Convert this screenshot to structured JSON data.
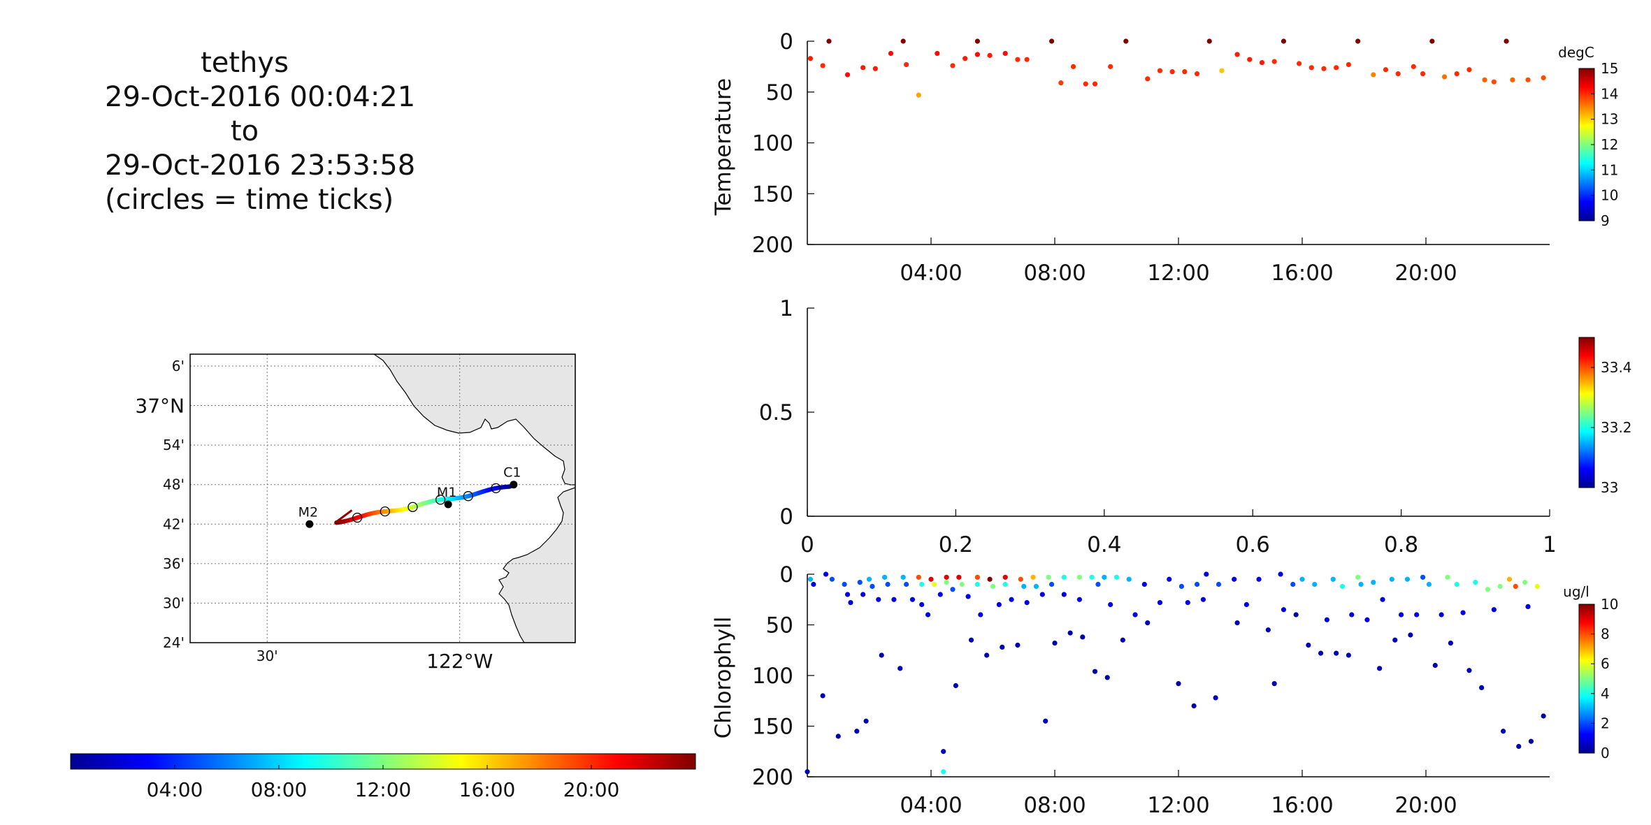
{
  "title": {
    "line1": "tethys",
    "line2": "29-Oct-2016 00:04:21",
    "line3": "to",
    "line4": "29-Oct-2016 23:53:58",
    "line5": "(circles = time ticks)"
  },
  "chart_data": [
    {
      "type": "map",
      "lat_labels": [
        "6'",
        "37°N",
        "54'",
        "48'",
        "42'",
        "36'",
        "30'",
        "24'"
      ],
      "lat_values": [
        37.1,
        37.0,
        36.9,
        36.8,
        36.7,
        36.6,
        36.5,
        36.4
      ],
      "lon_labels": [
        "30'",
        "122°W"
      ],
      "lon_values": [
        -122.5,
        -122.0
      ],
      "xlim": [
        -122.7,
        -121.7
      ],
      "ylim": [
        36.4,
        37.13
      ],
      "grid": true,
      "stations": [
        {
          "label": "C1",
          "lon": -121.86,
          "lat": 36.8
        },
        {
          "label": "M1",
          "lon": -122.03,
          "lat": 36.75
        },
        {
          "label": "M2",
          "lon": -122.39,
          "lat": 36.7
        }
      ],
      "colormap": "jet",
      "track_time_hours": [
        0,
        24
      ]
    },
    {
      "type": "colorbar",
      "orientation": "horizontal",
      "colormap": "jet",
      "range_hours": [
        0,
        24
      ],
      "tick_hours": [
        4,
        8,
        12,
        16,
        20
      ],
      "tick_labels": [
        "04:00",
        "08:00",
        "12:00",
        "16:00",
        "20:00"
      ]
    },
    {
      "type": "scatter",
      "ylabel": "Temperature",
      "xlim_hours": [
        0,
        24
      ],
      "ylim": [
        200,
        0
      ],
      "yticks": [
        0,
        50,
        100,
        150,
        200
      ],
      "xtick_hours": [
        4,
        8,
        12,
        16,
        20
      ],
      "xtick_labels": [
        "04:00",
        "08:00",
        "12:00",
        "16:00",
        "20:00"
      ],
      "colorbar": {
        "label": "degC",
        "min": 9,
        "max": 15,
        "ticks": [
          9,
          10,
          11,
          12,
          13,
          14,
          15
        ]
      },
      "points": [
        [
          0.1,
          17,
          14.1
        ],
        [
          0.5,
          24,
          14.0
        ],
        [
          0.7,
          0,
          15.0
        ],
        [
          1.3,
          33,
          14.2
        ],
        [
          1.8,
          26,
          14.1
        ],
        [
          2.2,
          27,
          14.1
        ],
        [
          2.7,
          12,
          14.2
        ],
        [
          3.1,
          0,
          15.0
        ],
        [
          3.2,
          23,
          14.0
        ],
        [
          3.6,
          53,
          13.3
        ],
        [
          4.2,
          12,
          14.2
        ],
        [
          4.7,
          24,
          14.0
        ],
        [
          5.1,
          17,
          14.1
        ],
        [
          5.5,
          0,
          15.0
        ],
        [
          5.5,
          13,
          14.2
        ],
        [
          5.9,
          14,
          14.1
        ],
        [
          6.4,
          12,
          14.2
        ],
        [
          6.8,
          18,
          14.0
        ],
        [
          7.1,
          18,
          14.0
        ],
        [
          7.9,
          0,
          15.0
        ],
        [
          8.2,
          41,
          13.9
        ],
        [
          8.6,
          25,
          14.0
        ],
        [
          9.0,
          42,
          14.0
        ],
        [
          9.3,
          42,
          14.0
        ],
        [
          9.8,
          25,
          14.0
        ],
        [
          10.3,
          0,
          15.0
        ],
        [
          11.0,
          37,
          14.0
        ],
        [
          11.4,
          29,
          14.0
        ],
        [
          11.8,
          30,
          14.0
        ],
        [
          12.2,
          30,
          14.0
        ],
        [
          12.6,
          32,
          14.0
        ],
        [
          13.0,
          0,
          15.0
        ],
        [
          13.4,
          29,
          13.1
        ],
        [
          13.9,
          13,
          14.1
        ],
        [
          14.3,
          18,
          14.1
        ],
        [
          14.7,
          21,
          14.1
        ],
        [
          15.1,
          20,
          14.0
        ],
        [
          15.4,
          0,
          15.0
        ],
        [
          15.9,
          22,
          14.0
        ],
        [
          16.3,
          26,
          14.0
        ],
        [
          16.7,
          27,
          14.0
        ],
        [
          17.1,
          26,
          14.0
        ],
        [
          17.5,
          23,
          14.0
        ],
        [
          17.8,
          0,
          15.0
        ],
        [
          18.3,
          33,
          13.5
        ],
        [
          18.7,
          28,
          14.0
        ],
        [
          19.1,
          32,
          14.0
        ],
        [
          19.6,
          25,
          14.0
        ],
        [
          19.9,
          32,
          14.0
        ],
        [
          20.2,
          0,
          15.0
        ],
        [
          20.6,
          35,
          13.6
        ],
        [
          21.0,
          32,
          14.0
        ],
        [
          21.4,
          28,
          14.0
        ],
        [
          21.9,
          38,
          13.7
        ],
        [
          22.2,
          40,
          13.8
        ],
        [
          22.6,
          0,
          15.0
        ],
        [
          22.8,
          38,
          13.7
        ],
        [
          23.3,
          38,
          13.8
        ],
        [
          23.8,
          36,
          13.8
        ]
      ]
    },
    {
      "type": "scatter",
      "ylabel": "",
      "xlim": [
        0,
        1
      ],
      "ylim": [
        0,
        1
      ],
      "yticks": [
        0,
        0.5,
        1
      ],
      "xticks": [
        0,
        0.2,
        0.4,
        0.6,
        0.8,
        1
      ],
      "colorbar": {
        "label": "",
        "min": 33,
        "max": 33.5,
        "ticks": [
          33,
          33.2,
          33.4
        ]
      },
      "points": []
    },
    {
      "type": "scatter",
      "ylabel": "Chlorophyll",
      "xlim_hours": [
        0,
        24
      ],
      "ylim": [
        200,
        0
      ],
      "yticks": [
        0,
        50,
        100,
        150,
        200
      ],
      "xtick_hours": [
        4,
        8,
        12,
        16,
        20
      ],
      "xtick_labels": [
        "04:00",
        "08:00",
        "12:00",
        "16:00",
        "20:00"
      ],
      "colorbar": {
        "label": "ug/l",
        "min": 0,
        "max": 10,
        "ticks": [
          0,
          2,
          4,
          6,
          8,
          10
        ]
      },
      "points": [
        [
          0.0,
          195,
          0.5
        ],
        [
          0.1,
          5,
          3
        ],
        [
          0.2,
          10,
          1
        ],
        [
          0.5,
          120,
          0.5
        ],
        [
          0.6,
          0,
          1
        ],
        [
          0.8,
          5,
          2
        ],
        [
          1.0,
          160,
          0.5
        ],
        [
          1.2,
          10,
          2
        ],
        [
          1.3,
          20,
          1
        ],
        [
          1.4,
          28,
          1
        ],
        [
          1.6,
          155,
          0.5
        ],
        [
          1.7,
          8,
          2
        ],
        [
          1.8,
          20,
          1
        ],
        [
          1.9,
          145,
          0.5
        ],
        [
          2.0,
          5,
          3
        ],
        [
          2.1,
          12,
          2
        ],
        [
          2.3,
          25,
          1
        ],
        [
          2.4,
          80,
          0.5
        ],
        [
          2.5,
          3,
          3
        ],
        [
          2.6,
          10,
          2
        ],
        [
          2.8,
          25,
          1
        ],
        [
          3.0,
          93,
          0.5
        ],
        [
          3.1,
          3,
          3
        ],
        [
          3.2,
          10,
          2
        ],
        [
          3.4,
          25,
          1
        ],
        [
          3.6,
          3,
          8
        ],
        [
          3.7,
          10,
          4
        ],
        [
          3.7,
          30,
          1
        ],
        [
          3.9,
          40,
          1
        ],
        [
          4.0,
          5,
          9
        ],
        [
          4.1,
          10,
          6
        ],
        [
          4.3,
          20,
          1
        ],
        [
          4.4,
          175,
          0.5
        ],
        [
          4.4,
          195,
          4
        ],
        [
          4.5,
          3,
          9
        ],
        [
          4.5,
          8,
          5
        ],
        [
          4.7,
          15,
          2
        ],
        [
          4.8,
          110,
          0.5
        ],
        [
          4.9,
          3,
          9
        ],
        [
          5.0,
          10,
          5
        ],
        [
          5.2,
          22,
          1
        ],
        [
          5.3,
          65,
          0.5
        ],
        [
          5.5,
          3,
          8
        ],
        [
          5.5,
          10,
          4
        ],
        [
          5.6,
          40,
          1
        ],
        [
          5.8,
          80,
          0.5
        ],
        [
          5.9,
          5,
          10
        ],
        [
          6.0,
          12,
          5
        ],
        [
          6.2,
          30,
          1
        ],
        [
          6.3,
          72,
          0.5
        ],
        [
          6.4,
          3,
          9
        ],
        [
          6.4,
          10,
          4
        ],
        [
          6.6,
          25,
          1
        ],
        [
          6.8,
          70,
          0.5
        ],
        [
          6.9,
          5,
          8
        ],
        [
          7.0,
          12,
          3
        ],
        [
          7.1,
          28,
          1
        ],
        [
          7.3,
          3,
          7
        ],
        [
          7.4,
          12,
          3
        ],
        [
          7.6,
          20,
          1
        ],
        [
          7.7,
          145,
          0.5
        ],
        [
          7.8,
          3,
          5
        ],
        [
          7.9,
          10,
          2
        ],
        [
          8.0,
          68,
          0.5
        ],
        [
          8.3,
          3,
          4
        ],
        [
          8.3,
          20,
          1
        ],
        [
          8.5,
          58,
          0.5
        ],
        [
          8.8,
          3,
          5
        ],
        [
          8.8,
          25,
          1
        ],
        [
          8.9,
          62,
          0.5
        ],
        [
          9.2,
          3,
          4
        ],
        [
          9.3,
          96,
          0.5
        ],
        [
          9.4,
          10,
          2
        ],
        [
          9.6,
          3,
          3
        ],
        [
          9.7,
          102,
          0.5
        ],
        [
          9.8,
          30,
          1
        ],
        [
          10.0,
          3,
          4
        ],
        [
          10.2,
          65,
          0.5
        ],
        [
          10.4,
          5,
          3
        ],
        [
          10.6,
          40,
          1
        ],
        [
          10.9,
          10,
          1
        ],
        [
          11.0,
          48,
          0.5
        ],
        [
          11.4,
          28,
          1
        ],
        [
          11.7,
          5,
          1
        ],
        [
          12.0,
          108,
          0.5
        ],
        [
          12.1,
          12,
          2
        ],
        [
          12.3,
          28,
          1
        ],
        [
          12.5,
          130,
          0.5
        ],
        [
          12.6,
          10,
          2
        ],
        [
          12.8,
          25,
          1
        ],
        [
          12.9,
          0,
          1
        ],
        [
          13.2,
          122,
          0.5
        ],
        [
          13.3,
          10,
          2
        ],
        [
          13.8,
          5,
          1
        ],
        [
          13.9,
          48,
          0.5
        ],
        [
          14.2,
          30,
          1
        ],
        [
          14.6,
          5,
          1
        ],
        [
          14.9,
          55,
          0.5
        ],
        [
          15.1,
          108,
          0.5
        ],
        [
          15.3,
          0,
          1
        ],
        [
          15.4,
          35,
          1
        ],
        [
          15.7,
          10,
          2
        ],
        [
          15.8,
          40,
          0.5
        ],
        [
          16.0,
          5,
          3
        ],
        [
          16.2,
          70,
          0.5
        ],
        [
          16.4,
          10,
          3
        ],
        [
          16.6,
          78,
          0.5
        ],
        [
          16.8,
          45,
          1
        ],
        [
          17.0,
          5,
          3
        ],
        [
          17.1,
          78,
          0.5
        ],
        [
          17.3,
          12,
          4
        ],
        [
          17.5,
          80,
          0.5
        ],
        [
          17.6,
          40,
          1
        ],
        [
          17.8,
          3,
          5
        ],
        [
          17.9,
          10,
          3
        ],
        [
          18.1,
          45,
          1
        ],
        [
          18.3,
          8,
          3
        ],
        [
          18.5,
          93,
          0.5
        ],
        [
          18.6,
          25,
          1
        ],
        [
          18.9,
          5,
          3
        ],
        [
          19.0,
          65,
          0.5
        ],
        [
          19.2,
          40,
          1
        ],
        [
          19.4,
          5,
          3
        ],
        [
          19.5,
          60,
          0.5
        ],
        [
          19.7,
          40,
          1
        ],
        [
          19.9,
          3,
          2
        ],
        [
          20.1,
          10,
          3
        ],
        [
          20.3,
          90,
          0.5
        ],
        [
          20.5,
          40,
          1
        ],
        [
          20.7,
          3,
          5
        ],
        [
          20.8,
          68,
          0.5
        ],
        [
          21.0,
          10,
          4
        ],
        [
          21.2,
          38,
          1
        ],
        [
          21.4,
          95,
          0.5
        ],
        [
          21.6,
          8,
          4
        ],
        [
          21.8,
          112,
          0.5
        ],
        [
          22.0,
          15,
          5
        ],
        [
          22.2,
          35,
          1
        ],
        [
          22.4,
          12,
          5
        ],
        [
          22.5,
          155,
          0.5
        ],
        [
          22.7,
          5,
          7
        ],
        [
          22.9,
          12,
          8
        ],
        [
          23.0,
          170,
          0.5
        ],
        [
          23.2,
          8,
          5
        ],
        [
          23.3,
          32,
          1
        ],
        [
          23.4,
          165,
          0.5
        ],
        [
          23.6,
          12,
          6
        ],
        [
          23.8,
          140,
          0.5
        ]
      ]
    }
  ]
}
